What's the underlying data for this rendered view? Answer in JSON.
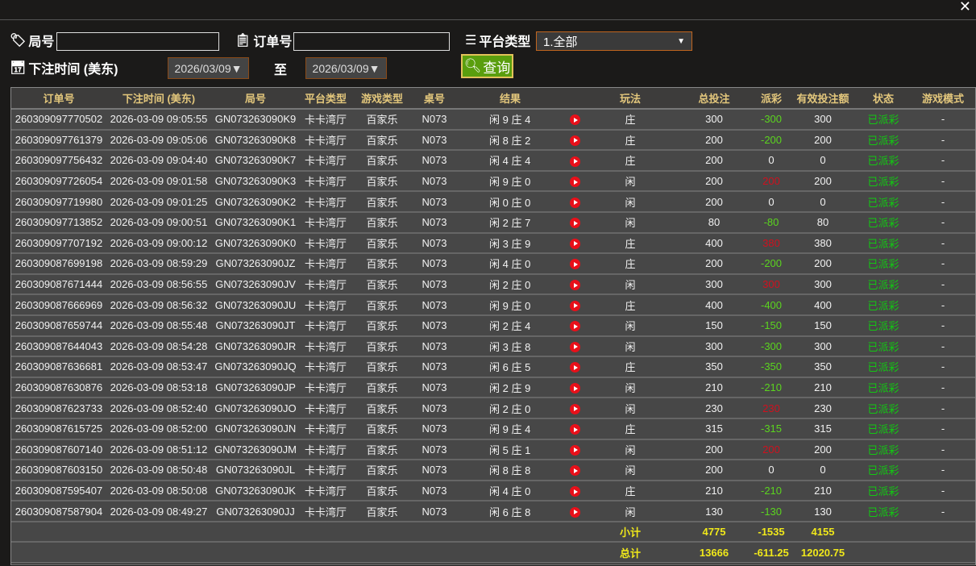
{
  "filters": {
    "round_label": "局号",
    "round_value": "",
    "order_label": "订单号",
    "order_value": "",
    "platform_label": "平台类型",
    "platform_value": "1.全部",
    "time_label": "下注时间 (美东)",
    "date_from": "2026/03/09▼",
    "to_label": "至",
    "date_to": "2026/03/09▼",
    "query_label": "查询"
  },
  "columns": [
    "订单号",
    "下注时间 (美东)",
    "局号",
    "平台类型",
    "游戏类型",
    "桌号",
    "结果",
    "",
    "玩法",
    "总投注",
    "派彩",
    "有效投注额",
    "状态",
    "游戏模式"
  ],
  "rows": [
    [
      "260309097770502",
      "2026-03-09 09:05:55",
      "GN073263090K9",
      "卡卡湾厅",
      "百家乐",
      "N073",
      "闲 9 庄 4",
      "庄",
      "300",
      "-300",
      "300",
      "已派彩",
      "-"
    ],
    [
      "260309097761379",
      "2026-03-09 09:05:06",
      "GN073263090K8",
      "卡卡湾厅",
      "百家乐",
      "N073",
      "闲 8 庄 2",
      "庄",
      "200",
      "-200",
      "200",
      "已派彩",
      "-"
    ],
    [
      "260309097756432",
      "2026-03-09 09:04:40",
      "GN073263090K7",
      "卡卡湾厅",
      "百家乐",
      "N073",
      "闲 4 庄 4",
      "庄",
      "200",
      "0",
      "0",
      "已派彩",
      "-"
    ],
    [
      "260309097726054",
      "2026-03-09 09:01:58",
      "GN073263090K3",
      "卡卡湾厅",
      "百家乐",
      "N073",
      "闲 9 庄 0",
      "闲",
      "200",
      "200",
      "200",
      "已派彩",
      "-"
    ],
    [
      "260309097719980",
      "2026-03-09 09:01:25",
      "GN073263090K2",
      "卡卡湾厅",
      "百家乐",
      "N073",
      "闲 0 庄 0",
      "闲",
      "200",
      "0",
      "0",
      "已派彩",
      "-"
    ],
    [
      "260309097713852",
      "2026-03-09 09:00:51",
      "GN073263090K1",
      "卡卡湾厅",
      "百家乐",
      "N073",
      "闲 2 庄 7",
      "闲",
      "80",
      "-80",
      "80",
      "已派彩",
      "-"
    ],
    [
      "260309097707192",
      "2026-03-09 09:00:12",
      "GN073263090K0",
      "卡卡湾厅",
      "百家乐",
      "N073",
      "闲 3 庄 9",
      "庄",
      "400",
      "380",
      "380",
      "已派彩",
      "-"
    ],
    [
      "260309087699198",
      "2026-03-09 08:59:29",
      "GN073263090JZ",
      "卡卡湾厅",
      "百家乐",
      "N073",
      "闲 4 庄 0",
      "庄",
      "200",
      "-200",
      "200",
      "已派彩",
      "-"
    ],
    [
      "260309087671444",
      "2026-03-09 08:56:55",
      "GN073263090JV",
      "卡卡湾厅",
      "百家乐",
      "N073",
      "闲 2 庄 0",
      "闲",
      "300",
      "300",
      "300",
      "已派彩",
      "-"
    ],
    [
      "260309087666969",
      "2026-03-09 08:56:32",
      "GN073263090JU",
      "卡卡湾厅",
      "百家乐",
      "N073",
      "闲 9 庄 0",
      "庄",
      "400",
      "-400",
      "400",
      "已派彩",
      "-"
    ],
    [
      "260309087659744",
      "2026-03-09 08:55:48",
      "GN073263090JT",
      "卡卡湾厅",
      "百家乐",
      "N073",
      "闲 2 庄 4",
      "闲",
      "150",
      "-150",
      "150",
      "已派彩",
      "-"
    ],
    [
      "260309087644043",
      "2026-03-09 08:54:28",
      "GN073263090JR",
      "卡卡湾厅",
      "百家乐",
      "N073",
      "闲 3 庄 8",
      "闲",
      "300",
      "-300",
      "300",
      "已派彩",
      "-"
    ],
    [
      "260309087636681",
      "2026-03-09 08:53:47",
      "GN073263090JQ",
      "卡卡湾厅",
      "百家乐",
      "N073",
      "闲 6 庄 5",
      "庄",
      "350",
      "-350",
      "350",
      "已派彩",
      "-"
    ],
    [
      "260309087630876",
      "2026-03-09 08:53:18",
      "GN073263090JP",
      "卡卡湾厅",
      "百家乐",
      "N073",
      "闲 2 庄 9",
      "闲",
      "210",
      "-210",
      "210",
      "已派彩",
      "-"
    ],
    [
      "260309087623733",
      "2026-03-09 08:52:40",
      "GN073263090JO",
      "卡卡湾厅",
      "百家乐",
      "N073",
      "闲 2 庄 0",
      "闲",
      "230",
      "230",
      "230",
      "已派彩",
      "-"
    ],
    [
      "260309087615725",
      "2026-03-09 08:52:00",
      "GN073263090JN",
      "卡卡湾厅",
      "百家乐",
      "N073",
      "闲 9 庄 4",
      "庄",
      "315",
      "-315",
      "315",
      "已派彩",
      "-"
    ],
    [
      "260309087607140",
      "2026-03-09 08:51:12",
      "GN073263090JM",
      "卡卡湾厅",
      "百家乐",
      "N073",
      "闲 5 庄 1",
      "闲",
      "200",
      "200",
      "200",
      "已派彩",
      "-"
    ],
    [
      "260309087603150",
      "2026-03-09 08:50:48",
      "GN073263090JL",
      "卡卡湾厅",
      "百家乐",
      "N073",
      "闲 8 庄 8",
      "闲",
      "200",
      "0",
      "0",
      "已派彩",
      "-"
    ],
    [
      "260309087595407",
      "2026-03-09 08:50:08",
      "GN073263090JK",
      "卡卡湾厅",
      "百家乐",
      "N073",
      "闲 4 庄 0",
      "庄",
      "210",
      "-210",
      "210",
      "已派彩",
      "-"
    ],
    [
      "260309087587904",
      "2026-03-09 08:49:27",
      "GN073263090JJ",
      "卡卡湾厅",
      "百家乐",
      "N073",
      "闲 6 庄 8",
      "闲",
      "130",
      "-130",
      "130",
      "已派彩",
      "-"
    ]
  ],
  "subtotal": {
    "label": "小计",
    "bet": "4775",
    "payout": "-1535",
    "valid": "4155"
  },
  "total": {
    "label": "总计",
    "bet": "13666",
    "payout": "-611.25",
    "valid": "12020.75"
  },
  "colors": {
    "payout_negative": "#5bd41f",
    "payout_positive": "#d0101e",
    "status": "#12c812",
    "header": "#e3c77c",
    "summary": "#f0e81a"
  },
  "icons": {
    "close": "close-icon",
    "play": "play-video-icon"
  }
}
